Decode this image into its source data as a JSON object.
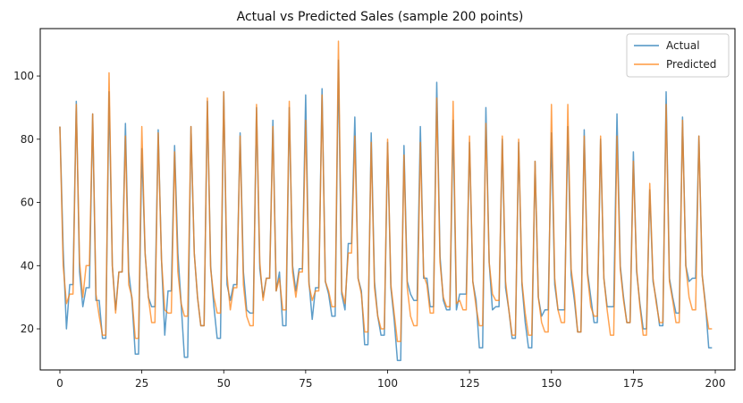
{
  "chart_data": {
    "type": "line",
    "title": "Actual vs Predicted Sales (sample 200 points)",
    "xlabel": "",
    "ylabel": "",
    "xlim": [
      -6,
      206
    ],
    "ylim": [
      7,
      115
    ],
    "xticks": [
      0,
      25,
      50,
      75,
      100,
      125,
      150,
      175,
      200
    ],
    "yticks": [
      20,
      40,
      60,
      80,
      100
    ],
    "grid": false,
    "legend_position": "top-right",
    "series": [
      {
        "name": "Actual",
        "color": "#1f77b4",
        "x": [
          0,
          1,
          2,
          3,
          4,
          5,
          6,
          7,
          8,
          9,
          10,
          11,
          12,
          13,
          14,
          15,
          16,
          17,
          18,
          19,
          20,
          21,
          22,
          23,
          24,
          25,
          26,
          27,
          28,
          29,
          30,
          31,
          32,
          33,
          34,
          35,
          36,
          37,
          38,
          39,
          40,
          41,
          42,
          43,
          44,
          45,
          46,
          47,
          48,
          49,
          50,
          51,
          52,
          53,
          54,
          55,
          56,
          57,
          58,
          59,
          60,
          61,
          62,
          63,
          64,
          65,
          66,
          67,
          68,
          69,
          70,
          71,
          72,
          73,
          74,
          75,
          76,
          77,
          78,
          79,
          80,
          81,
          82,
          83,
          84,
          85,
          86,
          87,
          88,
          89,
          90,
          91,
          92,
          93,
          94,
          95,
          96,
          97,
          98,
          99,
          100,
          101,
          102,
          103,
          104,
          105,
          106,
          107,
          108,
          109,
          110,
          111,
          112,
          113,
          114,
          115,
          116,
          117,
          118,
          119,
          120,
          121,
          122,
          123,
          124,
          125,
          126,
          127,
          128,
          129,
          130,
          131,
          132,
          133,
          134,
          135,
          136,
          137,
          138,
          139,
          140,
          141,
          142,
          143,
          144,
          145,
          146,
          147,
          148,
          149,
          150,
          151,
          152,
          153,
          154,
          155,
          156,
          157,
          158,
          159,
          160,
          161,
          162,
          163,
          164,
          165,
          166,
          167,
          168,
          169,
          170,
          171,
          172,
          173,
          174,
          175,
          176,
          177,
          178,
          179,
          180,
          181,
          182,
          183,
          184,
          185,
          186,
          187,
          188,
          189,
          190,
          191,
          192,
          193,
          194,
          195,
          196,
          197,
          198,
          199
        ],
        "y": [
          84,
          45,
          20,
          34,
          34,
          92,
          38,
          27,
          33,
          33,
          88,
          29,
          29,
          17,
          17,
          95,
          40,
          26,
          38,
          38,
          85,
          38,
          29,
          12,
          12,
          77,
          44,
          30,
          27,
          27,
          83,
          42,
          18,
          32,
          32,
          78,
          44,
          28,
          11,
          11,
          84,
          44,
          30,
          21,
          21,
          92,
          40,
          27,
          17,
          17,
          95,
          34,
          29,
          34,
          34,
          82,
          38,
          26,
          25,
          25,
          90,
          39,
          30,
          36,
          36,
          86,
          32,
          38,
          21,
          21,
          90,
          40,
          32,
          39,
          39,
          94,
          35,
          23,
          33,
          33,
          96,
          35,
          31,
          24,
          24,
          105,
          31,
          26,
          47,
          47,
          87,
          36,
          32,
          15,
          15,
          82,
          35,
          24,
          18,
          18,
          79,
          33,
          23,
          10,
          10,
          78,
          35,
          31,
          29,
          29,
          84,
          36,
          36,
          27,
          27,
          98,
          43,
          29,
          26,
          26,
          86,
          26,
          31,
          31,
          31,
          79,
          35,
          29,
          14,
          14,
          90,
          41,
          26,
          27,
          27,
          80,
          33,
          26,
          17,
          17,
          79,
          34,
          22,
          14,
          14,
          73,
          30,
          24,
          26,
          26,
          82,
          34,
          26,
          26,
          26,
          84,
          37,
          29,
          19,
          19,
          83,
          38,
          30,
          22,
          22,
          80,
          36,
          27,
          27,
          27,
          88,
          40,
          30,
          22,
          22,
          76,
          38,
          28,
          20,
          20,
          64,
          35,
          29,
          21,
          21,
          95,
          36,
          30,
          25,
          25,
          87,
          40,
          35,
          36,
          36,
          81,
          37,
          28,
          14,
          14
        ]
      },
      {
        "name": "Predicted",
        "color": "#ff7f0e",
        "x": [
          0,
          1,
          2,
          3,
          4,
          5,
          6,
          7,
          8,
          9,
          10,
          11,
          12,
          13,
          14,
          15,
          16,
          17,
          18,
          19,
          20,
          21,
          22,
          23,
          24,
          25,
          26,
          27,
          28,
          29,
          30,
          31,
          32,
          33,
          34,
          35,
          36,
          37,
          38,
          39,
          40,
          41,
          42,
          43,
          44,
          45,
          46,
          47,
          48,
          49,
          50,
          51,
          52,
          53,
          54,
          55,
          56,
          57,
          58,
          59,
          60,
          61,
          62,
          63,
          64,
          65,
          66,
          67,
          68,
          69,
          70,
          71,
          72,
          73,
          74,
          75,
          76,
          77,
          78,
          79,
          80,
          81,
          82,
          83,
          84,
          85,
          86,
          87,
          88,
          89,
          90,
          91,
          92,
          93,
          94,
          95,
          96,
          97,
          98,
          99,
          100,
          101,
          102,
          103,
          104,
          105,
          106,
          107,
          108,
          109,
          110,
          111,
          112,
          113,
          114,
          115,
          116,
          117,
          118,
          119,
          120,
          121,
          122,
          123,
          124,
          125,
          126,
          127,
          128,
          129,
          130,
          131,
          132,
          133,
          134,
          135,
          136,
          137,
          138,
          139,
          140,
          141,
          142,
          143,
          144,
          145,
          146,
          147,
          148,
          149,
          150,
          151,
          152,
          153,
          154,
          155,
          156,
          157,
          158,
          159,
          160,
          161,
          162,
          163,
          164,
          165,
          166,
          167,
          168,
          169,
          170,
          171,
          172,
          173,
          174,
          175,
          176,
          177,
          178,
          179,
          180,
          181,
          182,
          183,
          184,
          185,
          186,
          187,
          188,
          189,
          190,
          191,
          192,
          193,
          194,
          195,
          196,
          197,
          198,
          199
        ],
        "y": [
          84,
          40,
          28,
          31,
          31,
          91,
          41,
          30,
          40,
          40,
          88,
          31,
          24,
          18,
          18,
          101,
          40,
          25,
          38,
          38,
          81,
          34,
          30,
          17,
          17,
          84,
          44,
          30,
          22,
          22,
          82,
          42,
          26,
          25,
          25,
          76,
          38,
          28,
          24,
          24,
          84,
          44,
          30,
          21,
          21,
          93,
          39,
          30,
          25,
          25,
          95,
          37,
          26,
          33,
          33,
          81,
          34,
          24,
          21,
          21,
          91,
          41,
          29,
          36,
          36,
          84,
          32,
          36,
          26,
          26,
          92,
          38,
          30,
          38,
          38,
          86,
          34,
          29,
          32,
          32,
          94,
          35,
          32,
          27,
          27,
          111,
          32,
          28,
          44,
          44,
          81,
          36,
          31,
          19,
          19,
          79,
          33,
          24,
          20,
          20,
          80,
          34,
          25,
          16,
          16,
          75,
          33,
          24,
          21,
          21,
          79,
          37,
          34,
          25,
          25,
          93,
          41,
          30,
          27,
          27,
          92,
          28,
          29,
          26,
          26,
          81,
          35,
          27,
          21,
          21,
          85,
          41,
          31,
          29,
          29,
          81,
          35,
          26,
          18,
          18,
          80,
          35,
          25,
          18,
          18,
          73,
          30,
          22,
          19,
          19,
          91,
          36,
          26,
          22,
          22,
          91,
          39,
          31,
          19,
          19,
          81,
          37,
          27,
          24,
          24,
          81,
          36,
          26,
          18,
          18,
          81,
          39,
          29,
          22,
          22,
          73,
          39,
          27,
          18,
          18,
          66,
          36,
          28,
          22,
          22,
          91,
          35,
          29,
          22,
          22,
          86,
          40,
          30,
          26,
          26,
          81,
          37,
          27,
          20,
          20
        ]
      }
    ]
  }
}
